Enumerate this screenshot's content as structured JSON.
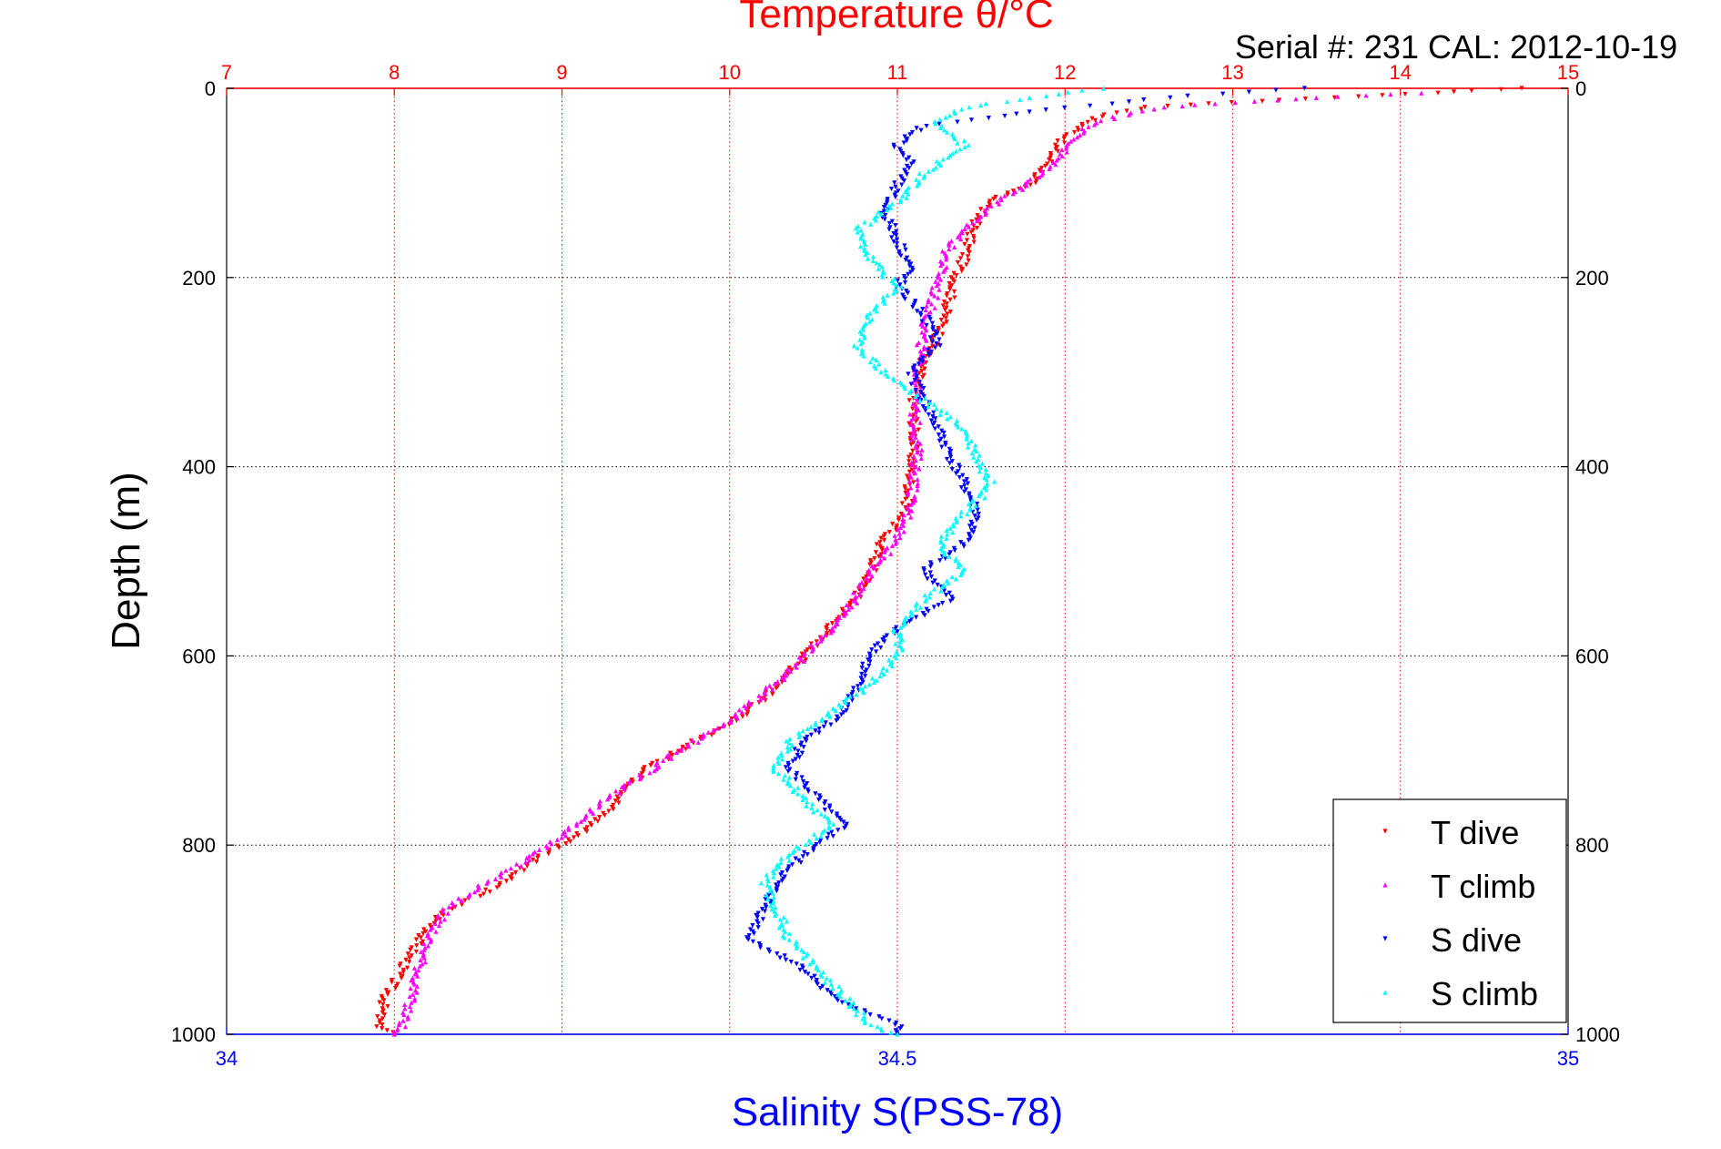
{
  "chart_data": {
    "type": "scatter",
    "title": "Temperature θ/°C",
    "subtitle": "Serial #: 231  CAL: 2012-10-19",
    "ylabel": "Depth (m)",
    "xlabel_bottom": "Salinity S(PSS-78)",
    "xlabel_top": "Temperature θ/°C",
    "ylim": [
      0,
      1000
    ],
    "y_reversed": true,
    "y_ticks": [
      0,
      200,
      400,
      600,
      800,
      1000
    ],
    "x_top_range": [
      7,
      15
    ],
    "x_top_ticks": [
      7,
      8,
      9,
      10,
      11,
      12,
      13,
      14,
      15
    ],
    "x_bottom_range": [
      34,
      35
    ],
    "x_bottom_ticks": [
      "34",
      "34.5",
      "35"
    ],
    "x_bottom_tick_values": [
      34,
      34.5,
      35
    ],
    "grid": true,
    "legend_position": "bottom-right",
    "colors": {
      "temperature_axis": "#ff0000",
      "salinity_axis": "#0000ff",
      "grid_vertical": "#ff0000",
      "grid_horizontal": "#000000"
    },
    "series": [
      {
        "name": "T dive",
        "axis": "temperature",
        "color": "#ff0000",
        "marker": "triangle-down",
        "points": [
          [
            14.7,
            0
          ],
          [
            14.2,
            5
          ],
          [
            13.6,
            10
          ],
          [
            13.0,
            15
          ],
          [
            12.5,
            20
          ],
          [
            12.2,
            30
          ],
          [
            12.1,
            40
          ],
          [
            11.95,
            60
          ],
          [
            11.9,
            80
          ],
          [
            11.8,
            100
          ],
          [
            11.6,
            115
          ],
          [
            11.5,
            130
          ],
          [
            11.45,
            150
          ],
          [
            11.4,
            180
          ],
          [
            11.35,
            200
          ],
          [
            11.3,
            230
          ],
          [
            11.25,
            260
          ],
          [
            11.15,
            290
          ],
          [
            11.1,
            330
          ],
          [
            11.1,
            370
          ],
          [
            11.08,
            410
          ],
          [
            11.05,
            450
          ],
          [
            10.9,
            480
          ],
          [
            10.85,
            510
          ],
          [
            10.75,
            540
          ],
          [
            10.6,
            570
          ],
          [
            10.45,
            600
          ],
          [
            10.3,
            630
          ],
          [
            10.1,
            660
          ],
          [
            9.8,
            690
          ],
          [
            9.5,
            720
          ],
          [
            9.3,
            760
          ],
          [
            9.1,
            790
          ],
          [
            8.8,
            820
          ],
          [
            8.6,
            845
          ],
          [
            8.3,
            870
          ],
          [
            8.15,
            900
          ],
          [
            8.05,
            930
          ],
          [
            7.95,
            960
          ],
          [
            7.9,
            990
          ],
          [
            8.0,
            1000
          ]
        ]
      },
      {
        "name": "T climb",
        "axis": "temperature",
        "color": "#ff00ff",
        "marker": "triangle-up",
        "points": [
          [
            14.1,
            5
          ],
          [
            13.5,
            10
          ],
          [
            13.0,
            15
          ],
          [
            12.6,
            20
          ],
          [
            12.3,
            30
          ],
          [
            12.1,
            45
          ],
          [
            12.0,
            65
          ],
          [
            11.9,
            85
          ],
          [
            11.75,
            105
          ],
          [
            11.6,
            120
          ],
          [
            11.45,
            140
          ],
          [
            11.3,
            170
          ],
          [
            11.25,
            200
          ],
          [
            11.2,
            230
          ],
          [
            11.15,
            260
          ],
          [
            11.12,
            300
          ],
          [
            11.1,
            340
          ],
          [
            11.12,
            380
          ],
          [
            11.1,
            420
          ],
          [
            11.05,
            460
          ],
          [
            10.95,
            490
          ],
          [
            10.8,
            520
          ],
          [
            10.7,
            555
          ],
          [
            10.55,
            580
          ],
          [
            10.4,
            610
          ],
          [
            10.2,
            640
          ],
          [
            10.0,
            670
          ],
          [
            9.7,
            700
          ],
          [
            9.45,
            730
          ],
          [
            9.2,
            760
          ],
          [
            9.0,
            790
          ],
          [
            8.75,
            820
          ],
          [
            8.5,
            845
          ],
          [
            8.3,
            870
          ],
          [
            8.2,
            900
          ],
          [
            8.15,
            930
          ],
          [
            8.1,
            960
          ],
          [
            8.05,
            990
          ],
          [
            8.0,
            1000
          ]
        ]
      },
      {
        "name": "S dive",
        "axis": "salinity",
        "color": "#0000ff",
        "marker": "triangle-down",
        "points": [
          [
            34.8,
            0
          ],
          [
            34.7,
            10
          ],
          [
            34.6,
            25
          ],
          [
            34.52,
            40
          ],
          [
            34.5,
            60
          ],
          [
            34.51,
            80
          ],
          [
            34.5,
            100
          ],
          [
            34.49,
            130
          ],
          [
            34.5,
            160
          ],
          [
            34.51,
            190
          ],
          [
            34.5,
            210
          ],
          [
            34.52,
            240
          ],
          [
            34.53,
            270
          ],
          [
            34.51,
            300
          ],
          [
            34.52,
            330
          ],
          [
            34.53,
            360
          ],
          [
            34.54,
            390
          ],
          [
            34.55,
            420
          ],
          [
            34.56,
            450
          ],
          [
            34.55,
            480
          ],
          [
            34.52,
            510
          ],
          [
            34.54,
            540
          ],
          [
            34.5,
            570
          ],
          [
            34.48,
            600
          ],
          [
            34.47,
            630
          ],
          [
            34.46,
            660
          ],
          [
            34.43,
            690
          ],
          [
            34.42,
            720
          ],
          [
            34.44,
            750
          ],
          [
            34.46,
            780
          ],
          [
            34.43,
            810
          ],
          [
            34.41,
            840
          ],
          [
            34.4,
            870
          ],
          [
            34.39,
            900
          ],
          [
            34.43,
            930
          ],
          [
            34.45,
            960
          ],
          [
            34.5,
            990
          ],
          [
            34.5,
            1000
          ]
        ]
      },
      {
        "name": "S climb",
        "axis": "salinity",
        "color": "#00ffff",
        "marker": "triangle-up",
        "points": [
          [
            34.65,
            0
          ],
          [
            34.6,
            10
          ],
          [
            34.55,
            20
          ],
          [
            34.53,
            35
          ],
          [
            34.55,
            60
          ],
          [
            34.52,
            90
          ],
          [
            34.5,
            120
          ],
          [
            34.47,
            150
          ],
          [
            34.48,
            180
          ],
          [
            34.5,
            210
          ],
          [
            34.48,
            240
          ],
          [
            34.47,
            270
          ],
          [
            34.49,
            300
          ],
          [
            34.52,
            330
          ],
          [
            34.55,
            360
          ],
          [
            34.56,
            390
          ],
          [
            34.57,
            420
          ],
          [
            34.55,
            450
          ],
          [
            34.53,
            480
          ],
          [
            34.55,
            510
          ],
          [
            34.52,
            540
          ],
          [
            34.5,
            570
          ],
          [
            34.5,
            600
          ],
          [
            34.48,
            630
          ],
          [
            34.45,
            660
          ],
          [
            34.42,
            690
          ],
          [
            34.41,
            720
          ],
          [
            34.43,
            750
          ],
          [
            34.45,
            780
          ],
          [
            34.42,
            810
          ],
          [
            34.4,
            840
          ],
          [
            34.41,
            870
          ],
          [
            34.42,
            900
          ],
          [
            34.44,
            930
          ],
          [
            34.46,
            960
          ],
          [
            34.48,
            990
          ],
          [
            34.5,
            1000
          ]
        ]
      }
    ]
  }
}
